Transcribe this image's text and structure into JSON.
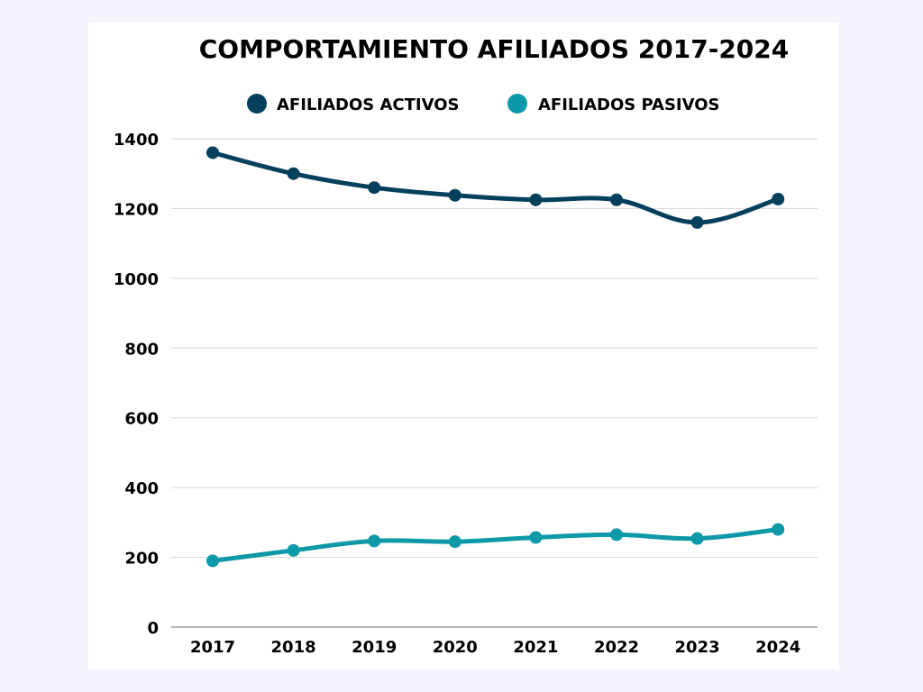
{
  "chart_data": {
    "type": "line",
    "title": "COMPORTAMIENTO AFILIADOS 2017-2024",
    "xlabel": "",
    "ylabel": "",
    "categories": [
      "2017",
      "2018",
      "2019",
      "2020",
      "2021",
      "2022",
      "2023",
      "2024"
    ],
    "ylim": [
      0,
      1400
    ],
    "yticks": [
      "0",
      "200",
      "400",
      "600",
      "800",
      "1000",
      "1200",
      "1400"
    ],
    "grid": true,
    "legend_position": "top",
    "series": [
      {
        "name": "AFILIADOS ACTIVOS",
        "color": "#043f5c",
        "values": [
          1360,
          1300,
          1260,
          1238,
          1225,
          1225,
          1160,
          1227
        ]
      },
      {
        "name": "AFILIADOS PASIVOS",
        "color": "#0e99a8",
        "values": [
          190,
          220,
          247,
          245,
          257,
          265,
          254,
          280
        ]
      }
    ]
  }
}
